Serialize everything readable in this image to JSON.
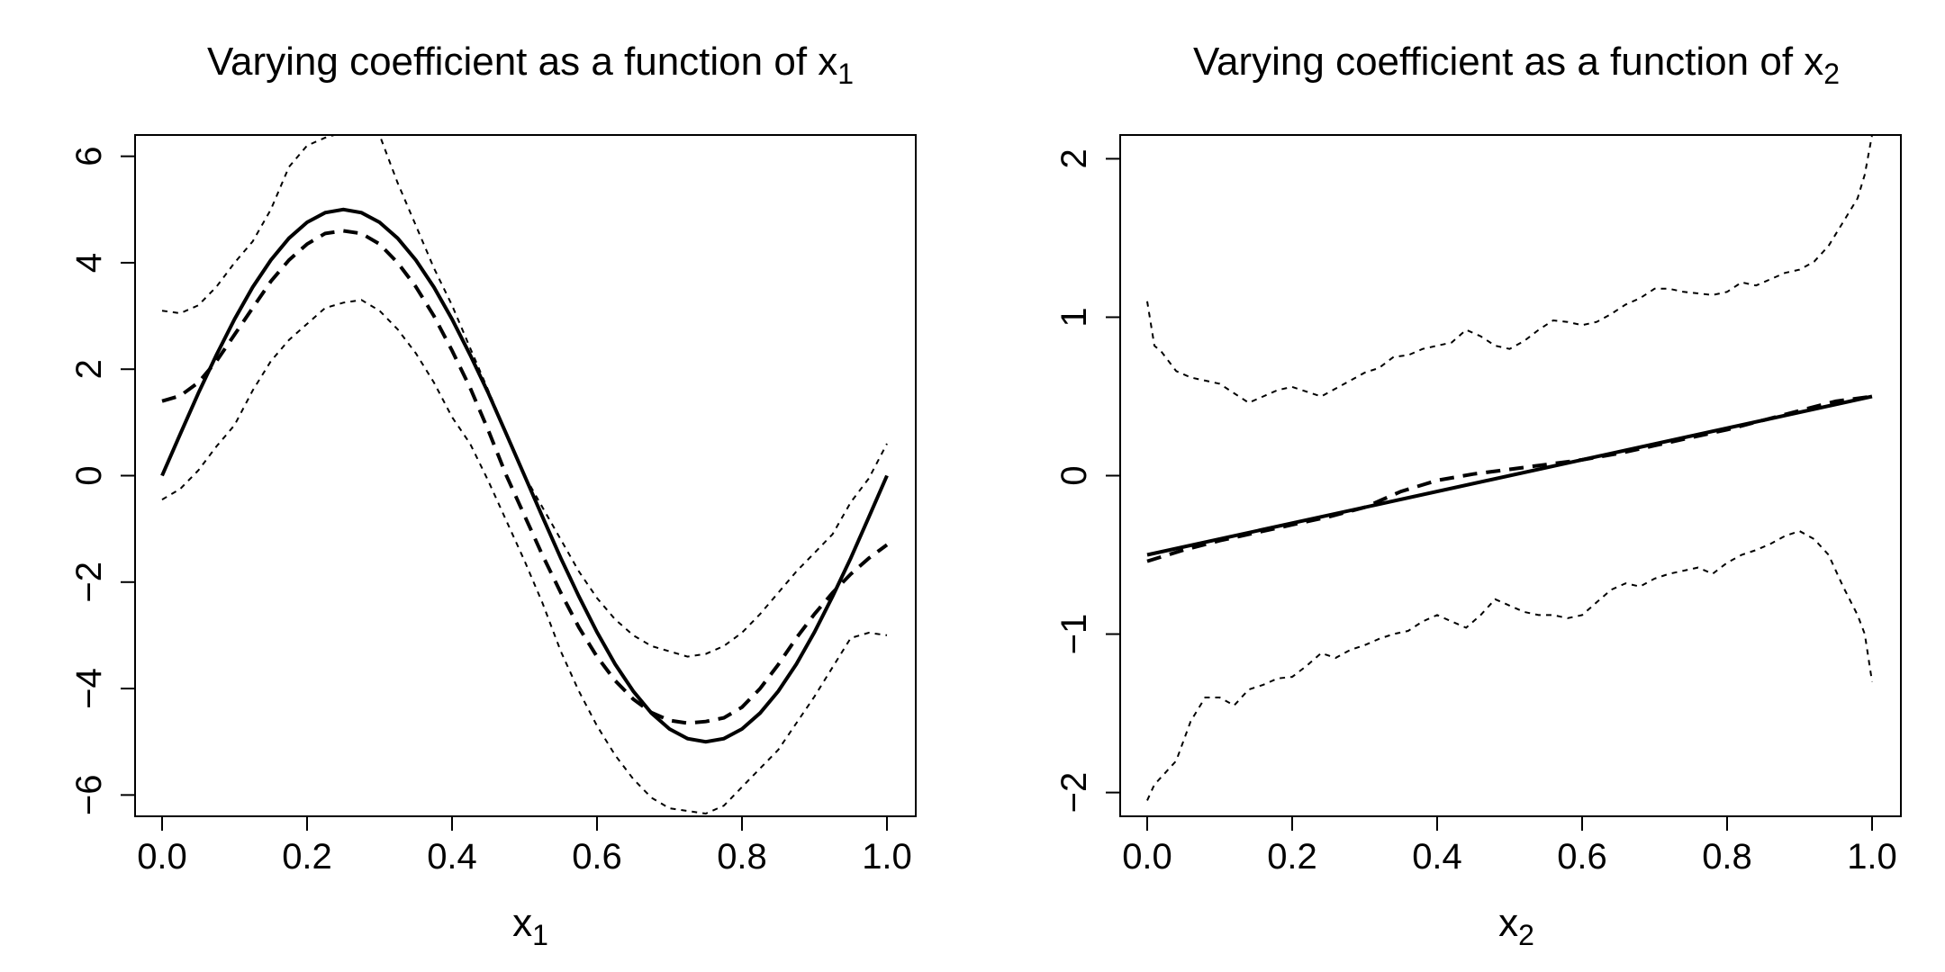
{
  "chart_data": [
    {
      "type": "line",
      "title": "Varying coefficient as a function of x",
      "title_subscript": "1",
      "xlabel": "x",
      "xlabel_subscript": "1",
      "ylabel": "",
      "xlim": [
        0,
        1
      ],
      "ylim": [
        -6.4,
        6.4
      ],
      "xticks": [
        0,
        0.2,
        0.4,
        0.6,
        0.8,
        1
      ],
      "xtick_labels": [
        "0.0",
        "0.2",
        "0.4",
        "0.6",
        "0.8",
        "1.0"
      ],
      "yticks": [
        -6,
        -4,
        -2,
        0,
        2,
        4,
        6
      ],
      "ytick_labels": [
        "−6",
        "−4",
        "−2",
        "0",
        "2",
        "4",
        "6"
      ],
      "grid": false,
      "series": [
        {
          "style": "solid",
          "x": [
            0,
            0.025,
            0.05,
            0.075,
            0.1,
            0.125,
            0.15,
            0.175,
            0.2,
            0.225,
            0.25,
            0.275,
            0.3,
            0.325,
            0.35,
            0.375,
            0.4,
            0.425,
            0.45,
            0.475,
            0.5,
            0.525,
            0.55,
            0.575,
            0.6,
            0.625,
            0.65,
            0.675,
            0.7,
            0.725,
            0.75,
            0.775,
            0.8,
            0.825,
            0.85,
            0.875,
            0.9,
            0.925,
            0.95,
            0.975,
            1
          ],
          "y": [
            0,
            0.78,
            1.55,
            2.27,
            2.94,
            3.54,
            4.05,
            4.46,
            4.76,
            4.94,
            5.0,
            4.94,
            4.76,
            4.46,
            4.05,
            3.54,
            2.94,
            2.27,
            1.55,
            0.78,
            0,
            -0.78,
            -1.55,
            -2.27,
            -2.94,
            -3.54,
            -4.05,
            -4.46,
            -4.76,
            -4.94,
            -5.0,
            -4.94,
            -4.76,
            -4.46,
            -4.05,
            -3.54,
            -2.94,
            -2.27,
            -1.55,
            -0.78,
            0
          ]
        },
        {
          "style": "dashed",
          "x": [
            0,
            0.025,
            0.05,
            0.075,
            0.1,
            0.125,
            0.15,
            0.175,
            0.2,
            0.225,
            0.25,
            0.275,
            0.3,
            0.325,
            0.35,
            0.375,
            0.4,
            0.425,
            0.45,
            0.475,
            0.5,
            0.525,
            0.55,
            0.575,
            0.6,
            0.625,
            0.65,
            0.675,
            0.7,
            0.725,
            0.75,
            0.775,
            0.8,
            0.825,
            0.85,
            0.875,
            0.9,
            0.925,
            0.95,
            0.975,
            1
          ],
          "y": [
            1.4,
            1.5,
            1.75,
            2.15,
            2.65,
            3.15,
            3.65,
            4.05,
            4.35,
            4.55,
            4.6,
            4.55,
            4.35,
            4.0,
            3.55,
            3.0,
            2.35,
            1.65,
            0.85,
            0.0,
            -0.75,
            -1.5,
            -2.2,
            -2.85,
            -3.4,
            -3.85,
            -4.2,
            -4.45,
            -4.6,
            -4.65,
            -4.62,
            -4.55,
            -4.35,
            -4.0,
            -3.55,
            -3.05,
            -2.6,
            -2.2,
            -1.85,
            -1.55,
            -1.3
          ]
        },
        {
          "style": "dotted",
          "x": [
            0,
            0.025,
            0.05,
            0.075,
            0.1,
            0.125,
            0.15,
            0.175,
            0.2,
            0.225,
            0.25,
            0.275,
            0.3,
            0.325,
            0.35,
            0.375,
            0.4,
            0.425,
            0.45,
            0.475,
            0.5,
            0.525,
            0.55,
            0.575,
            0.6,
            0.625,
            0.65,
            0.675,
            0.7,
            0.725,
            0.75,
            0.775,
            0.8,
            0.825,
            0.85,
            0.875,
            0.9,
            0.925,
            0.95,
            0.975,
            1
          ],
          "y": [
            3.1,
            3.05,
            3.2,
            3.55,
            4.0,
            4.4,
            5.0,
            5.8,
            6.2,
            6.35,
            6.45,
            6.5,
            6.4,
            5.5,
            4.7,
            3.9,
            3.2,
            2.4,
            1.6,
            0.8,
            0.0,
            -0.6,
            -1.2,
            -1.8,
            -2.3,
            -2.7,
            -3.0,
            -3.2,
            -3.3,
            -3.4,
            -3.35,
            -3.2,
            -2.95,
            -2.6,
            -2.2,
            -1.8,
            -1.45,
            -1.1,
            -0.5,
            -0.05,
            0.6
          ]
        },
        {
          "style": "dotted",
          "x": [
            0,
            0.025,
            0.05,
            0.075,
            0.1,
            0.125,
            0.15,
            0.175,
            0.2,
            0.225,
            0.25,
            0.275,
            0.3,
            0.325,
            0.35,
            0.375,
            0.4,
            0.425,
            0.45,
            0.475,
            0.5,
            0.525,
            0.55,
            0.575,
            0.6,
            0.625,
            0.65,
            0.675,
            0.7,
            0.725,
            0.75,
            0.775,
            0.8,
            0.825,
            0.85,
            0.875,
            0.9,
            0.925,
            0.95,
            0.975,
            1
          ],
          "y": [
            -0.45,
            -0.25,
            0.1,
            0.55,
            0.95,
            1.6,
            2.15,
            2.55,
            2.85,
            3.15,
            3.25,
            3.3,
            3.1,
            2.75,
            2.3,
            1.75,
            1.1,
            0.6,
            -0.1,
            -0.85,
            -1.6,
            -2.4,
            -3.3,
            -4.05,
            -4.7,
            -5.25,
            -5.7,
            -6.05,
            -6.25,
            -6.3,
            -6.35,
            -6.2,
            -5.85,
            -5.5,
            -5.15,
            -4.65,
            -4.15,
            -3.6,
            -3.05,
            -2.95,
            -3.0
          ]
        }
      ]
    },
    {
      "type": "line",
      "title": "Varying coefficient as a function of x",
      "title_subscript": "2",
      "xlabel": "x",
      "xlabel_subscript": "2",
      "ylabel": "",
      "xlim": [
        0,
        1
      ],
      "ylim": [
        -2.15,
        2.15
      ],
      "xticks": [
        0,
        0.2,
        0.4,
        0.6,
        0.8,
        1
      ],
      "xtick_labels": [
        "0.0",
        "0.2",
        "0.4",
        "0.6",
        "0.8",
        "1.0"
      ],
      "yticks": [
        -2,
        -1,
        0,
        1,
        2
      ],
      "ytick_labels": [
        "−2",
        "−1",
        "0",
        "1",
        "2"
      ],
      "grid": false,
      "series": [
        {
          "style": "solid",
          "x": [
            0,
            1
          ],
          "y": [
            -0.5,
            0.5
          ]
        },
        {
          "style": "dashed",
          "x": [
            0,
            0.05,
            0.1,
            0.15,
            0.2,
            0.25,
            0.3,
            0.35,
            0.4,
            0.45,
            0.5,
            0.55,
            0.6,
            0.65,
            0.7,
            0.75,
            0.8,
            0.85,
            0.9,
            0.95,
            1
          ],
          "y": [
            -0.54,
            -0.47,
            -0.41,
            -0.36,
            -0.31,
            -0.26,
            -0.2,
            -0.1,
            -0.03,
            0.01,
            0.04,
            0.07,
            0.1,
            0.14,
            0.19,
            0.24,
            0.29,
            0.35,
            0.41,
            0.47,
            0.5
          ]
        },
        {
          "style": "dotted",
          "x": [
            0,
            0.01,
            0.02,
            0.04,
            0.06,
            0.08,
            0.1,
            0.12,
            0.14,
            0.16,
            0.18,
            0.2,
            0.22,
            0.24,
            0.26,
            0.28,
            0.3,
            0.32,
            0.34,
            0.36,
            0.38,
            0.4,
            0.42,
            0.44,
            0.46,
            0.48,
            0.5,
            0.52,
            0.54,
            0.56,
            0.58,
            0.6,
            0.62,
            0.64,
            0.66,
            0.68,
            0.7,
            0.72,
            0.74,
            0.76,
            0.78,
            0.8,
            0.82,
            0.84,
            0.86,
            0.88,
            0.9,
            0.92,
            0.94,
            0.96,
            0.98,
            0.99,
            1
          ],
          "y": [
            1.1,
            0.82,
            0.78,
            0.66,
            0.62,
            0.6,
            0.58,
            0.52,
            0.46,
            0.5,
            0.54,
            0.56,
            0.53,
            0.5,
            0.55,
            0.6,
            0.65,
            0.68,
            0.75,
            0.76,
            0.8,
            0.82,
            0.84,
            0.92,
            0.88,
            0.82,
            0.8,
            0.85,
            0.92,
            0.98,
            0.97,
            0.95,
            0.97,
            1.02,
            1.08,
            1.12,
            1.18,
            1.18,
            1.16,
            1.15,
            1.14,
            1.16,
            1.22,
            1.2,
            1.24,
            1.28,
            1.3,
            1.35,
            1.45,
            1.6,
            1.75,
            1.9,
            2.15
          ]
        },
        {
          "style": "dotted",
          "x": [
            0,
            0.01,
            0.02,
            0.04,
            0.06,
            0.08,
            0.1,
            0.12,
            0.14,
            0.16,
            0.18,
            0.2,
            0.22,
            0.24,
            0.26,
            0.28,
            0.3,
            0.32,
            0.34,
            0.36,
            0.38,
            0.4,
            0.42,
            0.44,
            0.46,
            0.48,
            0.5,
            0.52,
            0.54,
            0.56,
            0.58,
            0.6,
            0.62,
            0.64,
            0.66,
            0.68,
            0.7,
            0.72,
            0.74,
            0.76,
            0.78,
            0.8,
            0.82,
            0.84,
            0.86,
            0.88,
            0.9,
            0.92,
            0.94,
            0.96,
            0.98,
            0.99,
            1
          ],
          "y": [
            -2.05,
            -1.95,
            -1.9,
            -1.8,
            -1.55,
            -1.4,
            -1.4,
            -1.45,
            -1.35,
            -1.32,
            -1.28,
            -1.27,
            -1.2,
            -1.12,
            -1.15,
            -1.1,
            -1.07,
            -1.03,
            -1.0,
            -0.98,
            -0.92,
            -0.88,
            -0.92,
            -0.96,
            -0.88,
            -0.78,
            -0.82,
            -0.86,
            -0.88,
            -0.88,
            -0.9,
            -0.88,
            -0.8,
            -0.72,
            -0.68,
            -0.7,
            -0.65,
            -0.62,
            -0.6,
            -0.58,
            -0.62,
            -0.55,
            -0.5,
            -0.47,
            -0.43,
            -0.38,
            -0.35,
            -0.4,
            -0.5,
            -0.7,
            -0.88,
            -1.0,
            -1.3
          ]
        }
      ]
    }
  ]
}
